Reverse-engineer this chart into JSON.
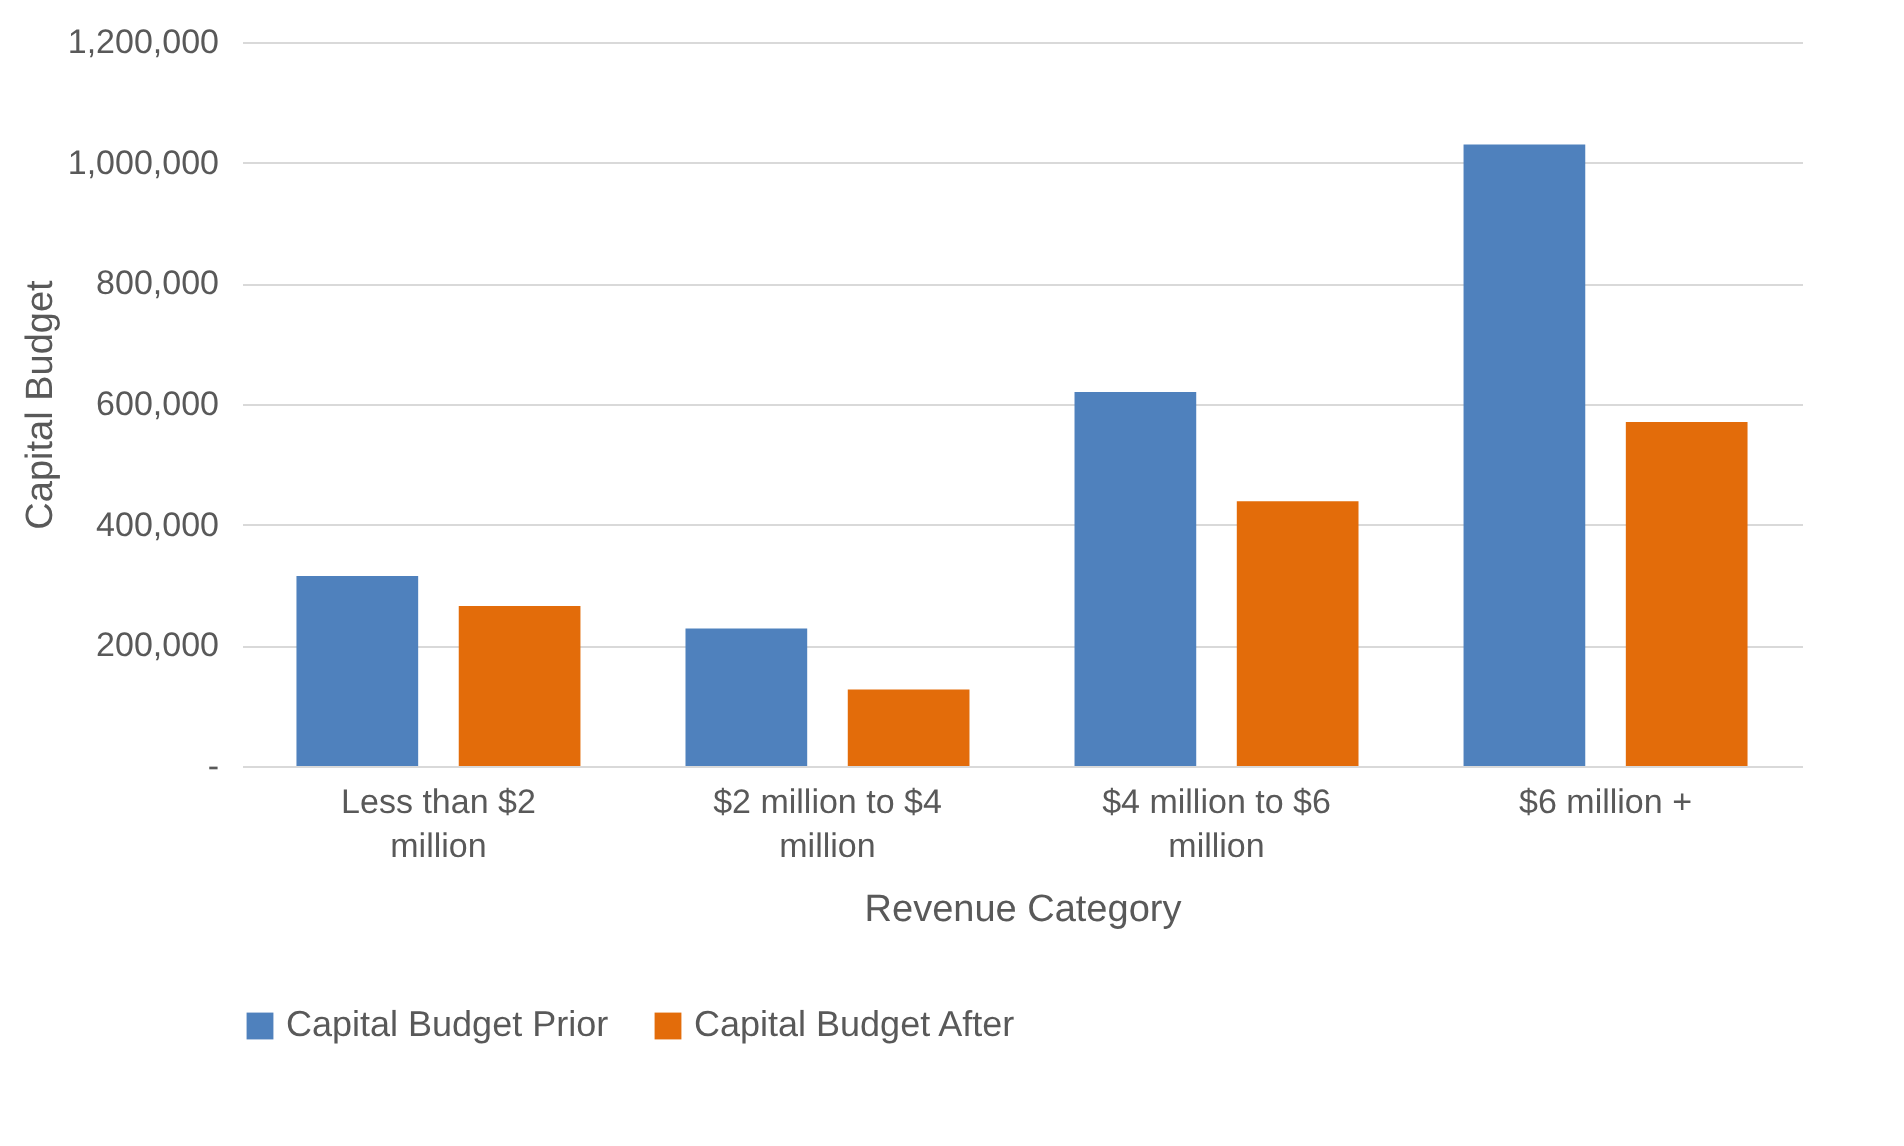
{
  "chart_data": {
    "type": "bar",
    "xlabel": "Revenue Category",
    "ylabel": "Capital Budget",
    "categories": [
      "Less than $2 million",
      "$2 million to $4 million",
      "$4 million to $6 million",
      "$6 million +"
    ],
    "series": [
      {
        "name": "Capital Budget Prior",
        "color": "#4f81bd",
        "values": [
          315000,
          228000,
          620000,
          1030000
        ]
      },
      {
        "name": "Capital Budget After",
        "color": "#e36c0a",
        "values": [
          265000,
          127000,
          439000,
          570000
        ]
      }
    ],
    "ylim": [
      0,
      1200000
    ],
    "yticks": [
      {
        "value": 0,
        "label": "-"
      },
      {
        "value": 200000,
        "label": "200,000"
      },
      {
        "value": 400000,
        "label": "400,000"
      },
      {
        "value": 600000,
        "label": "600,000"
      },
      {
        "value": 800000,
        "label": "800,000"
      },
      {
        "value": 1000000,
        "label": "1,000,000"
      },
      {
        "value": 1200000,
        "label": "1,200,000"
      }
    ],
    "grid": "y",
    "legend": "bottom"
  }
}
